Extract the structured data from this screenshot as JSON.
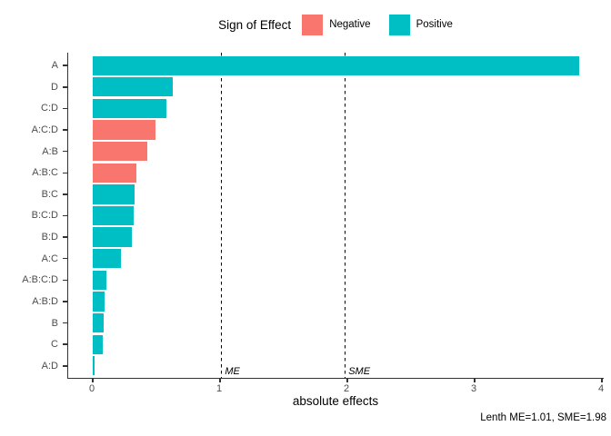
{
  "chart_data": {
    "type": "bar",
    "orientation": "horizontal",
    "title": "",
    "xlabel": "absolute effects",
    "ylabel": "",
    "categories": [
      "A",
      "D",
      "C:D",
      "A:C:D",
      "A:B",
      "A:B:C",
      "B:C",
      "B:C:D",
      "B:D",
      "A:C",
      "A:B:C:D",
      "A:B:D",
      "B",
      "C",
      "A:D"
    ],
    "values": [
      3.82,
      0.63,
      0.58,
      0.49,
      0.43,
      0.34,
      0.33,
      0.32,
      0.31,
      0.22,
      0.11,
      0.09,
      0.085,
      0.08,
      0.012
    ],
    "signs": [
      "positive",
      "positive",
      "positive",
      "negative",
      "negative",
      "negative",
      "positive",
      "positive",
      "positive",
      "positive",
      "positive",
      "positive",
      "positive",
      "positive",
      "positive"
    ],
    "x_ticks": [
      0,
      1,
      2,
      3,
      4
    ],
    "xlim": [
      -0.19,
      4.02
    ],
    "grid": false,
    "legend": {
      "title": "Sign of Effect",
      "position": "top",
      "items": [
        {
          "label": "Negative",
          "sign": "negative"
        },
        {
          "label": "Positive",
          "sign": "positive"
        }
      ]
    },
    "reference_lines": [
      {
        "label": "ME",
        "value": 1.01
      },
      {
        "label": "SME",
        "value": 1.98
      }
    ],
    "caption": "Lenth ME=1.01, SME=1.98"
  },
  "colors": {
    "negative": "#F8766D",
    "positive": "#00BFC4",
    "axis_line": "#333333",
    "axis_text": "#4D4D4D",
    "text": "#000000",
    "background": "#FFFFFF"
  }
}
